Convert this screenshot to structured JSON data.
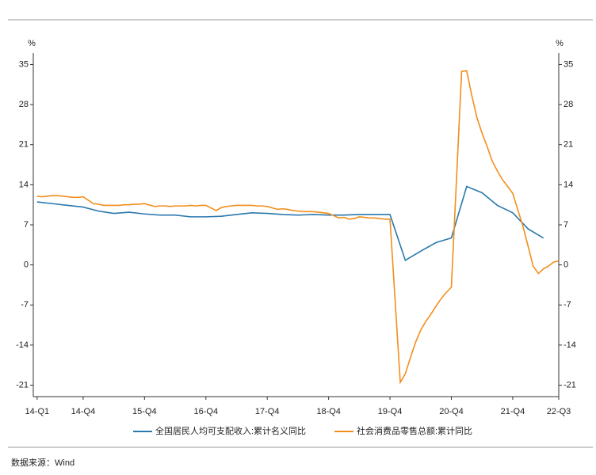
{
  "chart_data": {
    "type": "line",
    "ylabel": "%",
    "y2label": "%",
    "source": "数据来源：Wind",
    "xlim": [
      -0.25,
      34
    ],
    "xticks": [
      {
        "value": 0,
        "label": "14-Q1"
      },
      {
        "value": 3,
        "label": "14-Q4"
      },
      {
        "value": 7,
        "label": "15-Q4"
      },
      {
        "value": 11,
        "label": "16-Q4"
      },
      {
        "value": 15,
        "label": "17-Q4"
      },
      {
        "value": 19,
        "label": "18-Q4"
      },
      {
        "value": 23,
        "label": "19-Q4"
      },
      {
        "value": 27,
        "label": "20-Q4"
      },
      {
        "value": 31,
        "label": "21-Q4"
      },
      {
        "value": 34,
        "label": "22-Q3"
      }
    ],
    "ylim": [
      -23,
      37
    ],
    "yticks": [
      -21,
      -14,
      -7,
      0,
      7,
      14,
      21,
      28,
      35
    ],
    "y2lim": [
      -23,
      37
    ],
    "y2ticks": [
      -21,
      -14,
      -7,
      0,
      7,
      14,
      21,
      28,
      35
    ],
    "series": [
      {
        "name": "全国居民人均可支配收入:累计名义同比",
        "color": "#2a78ad",
        "x": [
          0,
          1,
          2,
          3,
          4,
          5,
          6,
          7,
          8,
          9,
          10,
          11,
          12,
          13,
          14,
          15,
          16,
          17,
          18,
          19,
          20,
          21,
          22,
          23,
          24,
          25,
          26,
          27,
          28,
          29,
          30,
          31,
          32,
          33
        ],
        "values": [
          11.0,
          10.7,
          10.4,
          10.1,
          9.4,
          9.0,
          9.2,
          8.9,
          8.7,
          8.7,
          8.4,
          8.4,
          8.5,
          8.8,
          9.1,
          9.0,
          8.8,
          8.7,
          8.8,
          8.7,
          8.7,
          8.8,
          8.8,
          8.8,
          0.8,
          2.4,
          3.9,
          4.7,
          13.7,
          12.6,
          10.4,
          9.1,
          6.3,
          4.7
        ]
      },
      {
        "name": "社会消费品零售总额:累计同比",
        "color": "#f28e1c",
        "x": [
          0,
          0.33,
          0.67,
          1,
          1.33,
          1.67,
          2,
          2.33,
          2.67,
          3,
          3.67,
          4,
          4.33,
          4.67,
          5,
          5.33,
          5.67,
          6,
          6.33,
          6.67,
          7,
          7.67,
          8,
          8.33,
          8.67,
          9,
          9.33,
          9.67,
          10,
          10.33,
          10.67,
          11,
          11.67,
          12,
          12.33,
          12.67,
          13,
          13.33,
          13.67,
          14,
          14.33,
          14.67,
          15,
          15.67,
          16,
          16.33,
          16.67,
          17,
          17.33,
          17.67,
          18,
          18.33,
          18.67,
          19,
          19.67,
          20,
          20.33,
          20.67,
          21,
          21.33,
          21.67,
          22,
          22.33,
          22.67,
          23,
          23.67,
          24,
          24.33,
          24.67,
          25,
          25.33,
          25.67,
          26,
          26.33,
          26.67,
          27,
          27.67,
          28,
          28.33,
          28.67,
          29,
          29.33,
          29.67,
          30,
          30.33,
          30.67,
          31,
          31.67,
          32,
          32.33,
          32.67,
          33,
          33.33,
          33.67,
          34
        ],
        "values": [
          12.0,
          11.9,
          12.0,
          12.1,
          12.1,
          12.0,
          11.9,
          11.8,
          11.8,
          11.9,
          10.7,
          10.6,
          10.4,
          10.4,
          10.4,
          10.4,
          10.5,
          10.5,
          10.6,
          10.6,
          10.7,
          10.2,
          10.3,
          10.3,
          10.2,
          10.3,
          10.3,
          10.3,
          10.4,
          10.3,
          10.4,
          10.4,
          9.5,
          10.0,
          10.2,
          10.3,
          10.4,
          10.4,
          10.4,
          10.4,
          10.3,
          10.3,
          10.2,
          9.7,
          9.8,
          9.7,
          9.5,
          9.4,
          9.3,
          9.3,
          9.3,
          9.2,
          9.1,
          9.0,
          8.2,
          8.3,
          8.0,
          8.1,
          8.4,
          8.3,
          8.2,
          8.2,
          8.1,
          8.0,
          8.0,
          -20.5,
          -19.0,
          -16.2,
          -13.5,
          -11.4,
          -9.9,
          -8.6,
          -7.2,
          -5.9,
          -4.8,
          -3.9,
          33.8,
          33.9,
          29.6,
          25.7,
          23.0,
          20.7,
          18.1,
          16.4,
          14.9,
          13.7,
          12.5,
          6.7,
          3.3,
          -0.2,
          -1.5,
          -0.7,
          -0.2,
          0.5,
          0.7
        ]
      }
    ]
  }
}
